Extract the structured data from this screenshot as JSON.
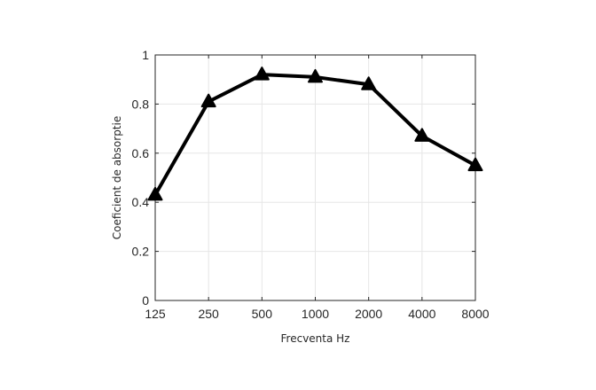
{
  "chart_data": {
    "type": "line",
    "title": "",
    "xlabel": "Frecventa Hz",
    "ylabel": "Coeficient de absorptie",
    "categories": [
      "125",
      "250",
      "500",
      "1000",
      "2000",
      "4000",
      "8000"
    ],
    "series": [
      {
        "values": [
          0.43,
          0.81,
          0.92,
          0.91,
          0.88,
          0.67,
          0.55
        ]
      }
    ],
    "ylim": [
      0,
      1
    ],
    "yticks": [
      0,
      0.2,
      0.4,
      0.6,
      0.8,
      1
    ],
    "ytick_labels": [
      "0",
      "0.2",
      "0.4",
      "0.6",
      "0.8",
      "1"
    ],
    "grid": true,
    "marker": "triangle",
    "line_color": "#000000",
    "grid_color": "#e6e6e6",
    "axis_color": "#262626"
  }
}
